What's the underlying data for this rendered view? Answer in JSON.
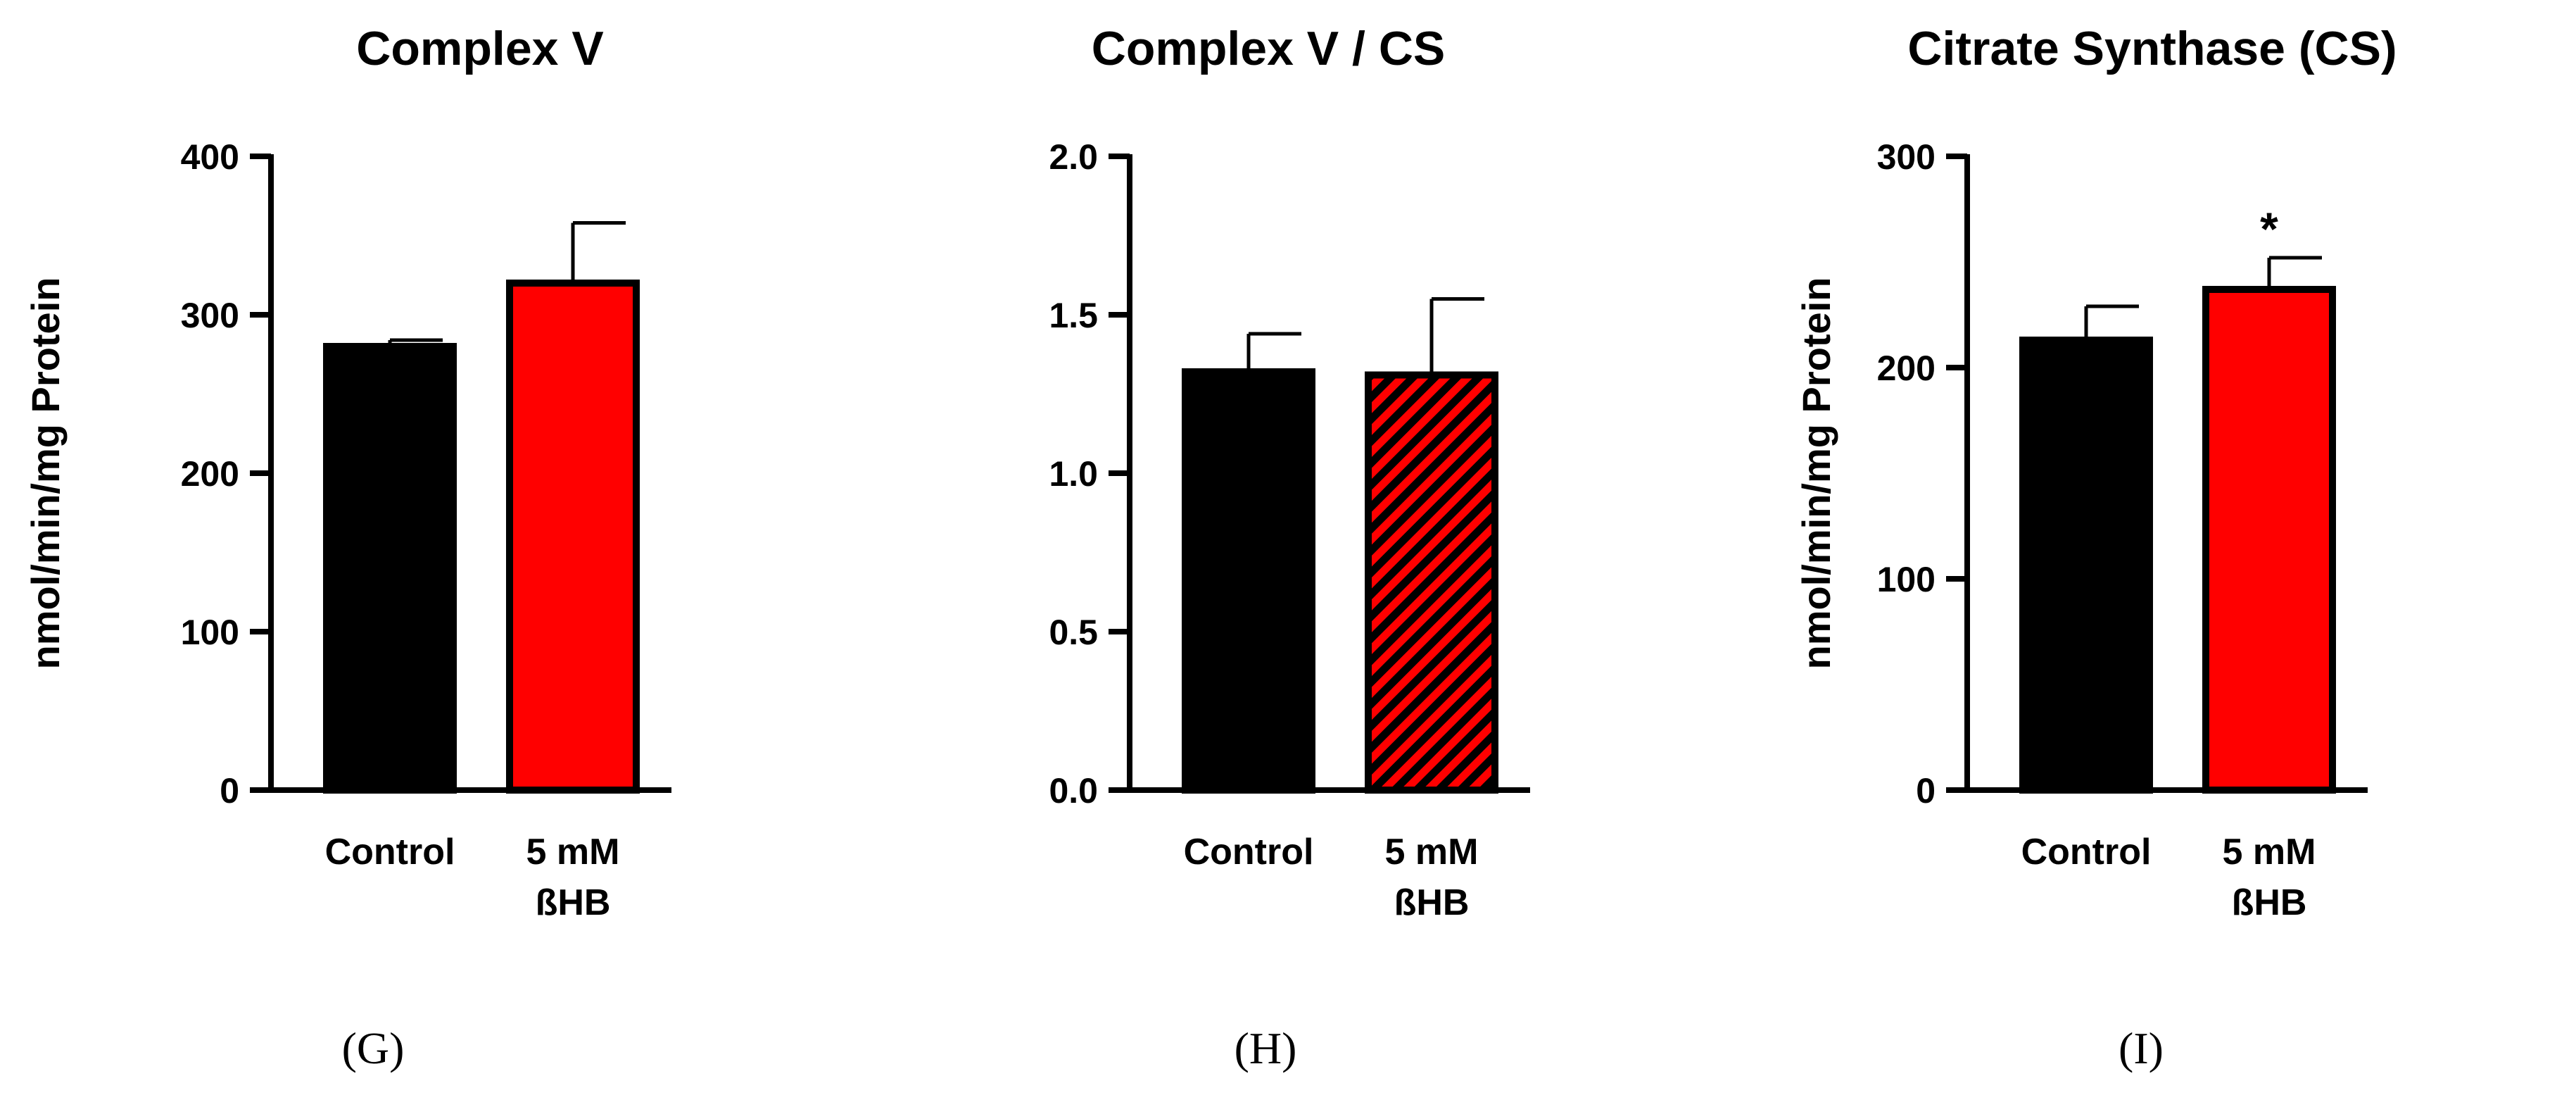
{
  "chart_data": [
    {
      "type": "bar",
      "title": "Complex V",
      "ylabel": "nmol/min/mg Protein",
      "xlabel": "",
      "ylim": [
        0,
        400
      ],
      "yticks": [
        "0",
        "100",
        "200",
        "300",
        "400"
      ],
      "categories": [
        [
          "Control"
        ],
        [
          "5 mM",
          "ßHB"
        ]
      ],
      "values": [
        280,
        320
      ],
      "errors": [
        4,
        38
      ],
      "colors": [
        "#000000",
        "#ff0000"
      ],
      "hatched": [
        false,
        false
      ],
      "significance": [
        "",
        ""
      ],
      "panel_label": "(G)"
    },
    {
      "type": "bar",
      "title": "Complex V / CS",
      "ylabel": "",
      "xlabel": "",
      "ylim": [
        0,
        2.0
      ],
      "yticks": [
        "0.0",
        "0.5",
        "1.0",
        "1.5",
        "2.0"
      ],
      "categories": [
        [
          "Control"
        ],
        [
          "5 mM",
          "ßHB"
        ]
      ],
      "values": [
        1.32,
        1.31
      ],
      "errors": [
        0.12,
        0.24
      ],
      "colors": [
        "#000000",
        "#ff0000"
      ],
      "hatched": [
        false,
        true
      ],
      "significance": [
        "",
        ""
      ],
      "panel_label": "(H)"
    },
    {
      "type": "bar",
      "title": "Citrate Synthase (CS)",
      "ylabel": "nmol/min/mg Protein",
      "xlabel": "",
      "ylim": [
        0,
        300
      ],
      "yticks": [
        "0",
        "100",
        "200",
        "300"
      ],
      "categories": [
        [
          "Control"
        ],
        [
          "5 mM",
          "ßHB"
        ]
      ],
      "values": [
        213,
        237
      ],
      "errors": [
        16,
        15
      ],
      "colors": [
        "#000000",
        "#ff0000"
      ],
      "hatched": [
        false,
        false
      ],
      "significance": [
        "",
        "*"
      ],
      "panel_label": "(I)"
    }
  ]
}
